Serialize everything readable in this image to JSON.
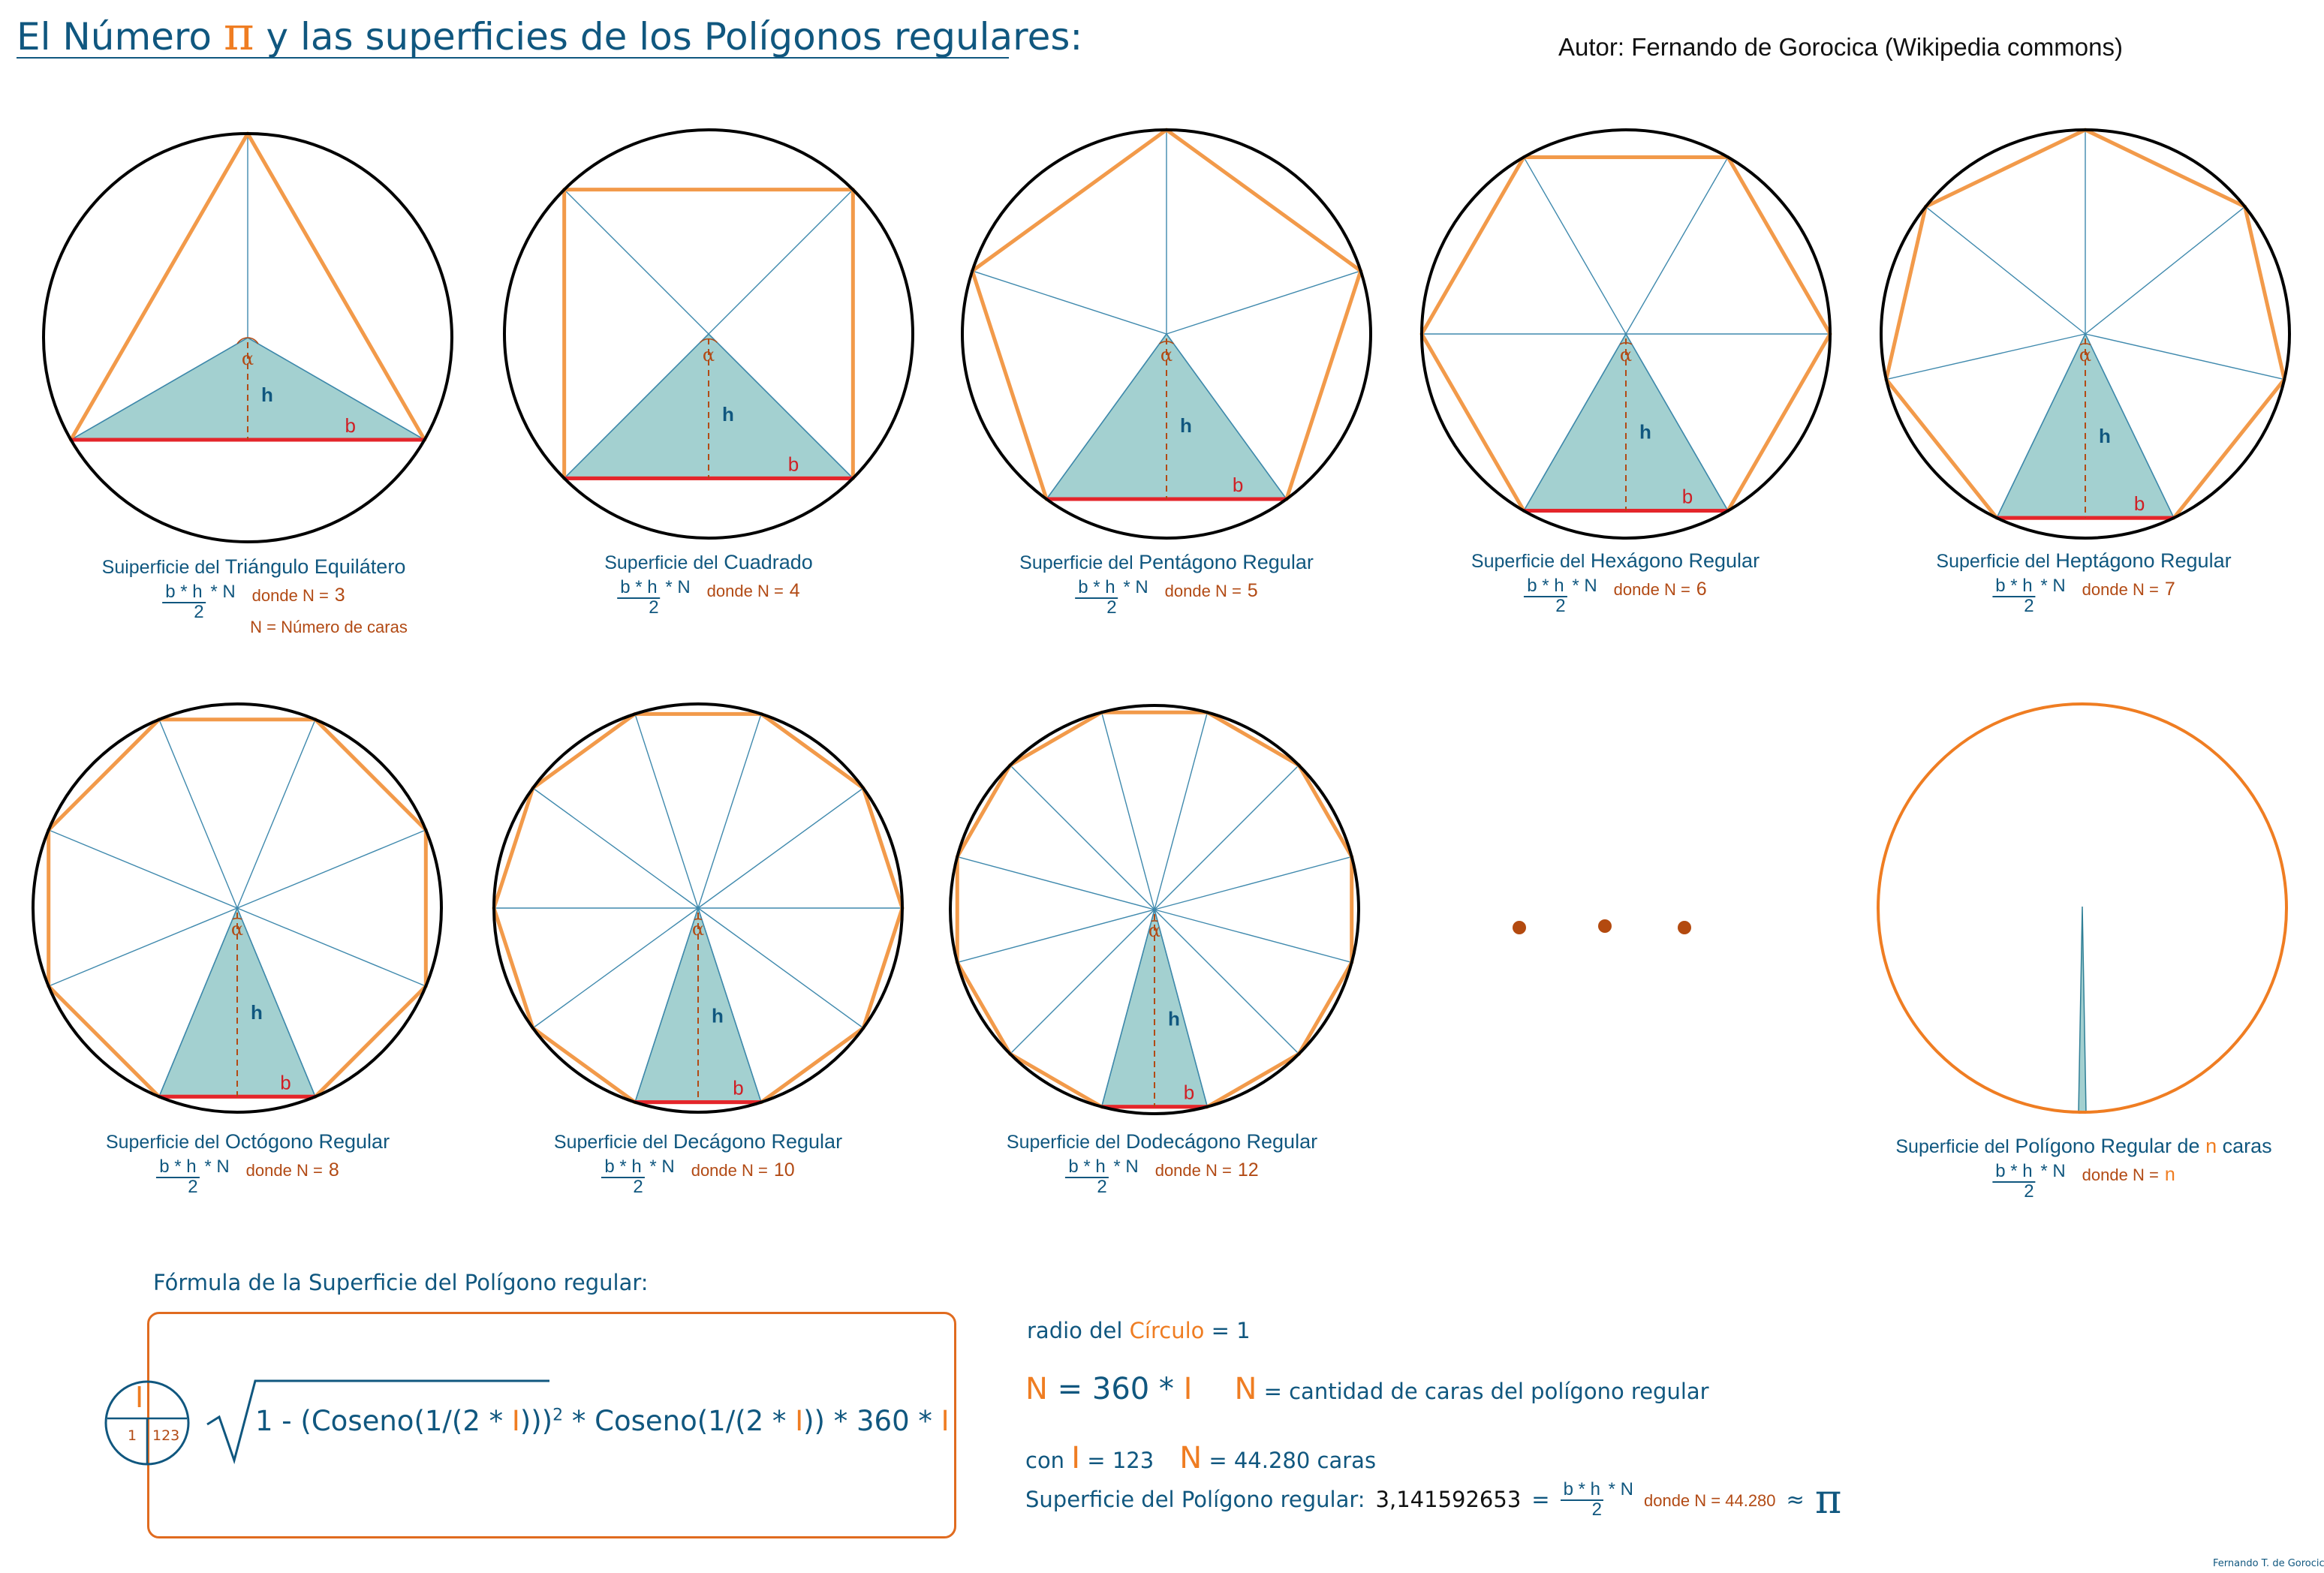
{
  "title": {
    "before": "El Número ",
    "symbol": "π",
    "after": " y las superficies de los Polígonos regulares:"
  },
  "author": "Autor: Fernando de Gorocica (Wikipedia commons)",
  "labels": {
    "alpha": "α",
    "h": "h",
    "b": "b"
  },
  "colors": {
    "polygon_stroke": "#f29a4a",
    "triangle_fill": "#a3d0d0",
    "triangle_stroke": "#2f7f96",
    "spoke": "#3f89ad",
    "base": "#e4252b",
    "height_dash": "#b24a14",
    "circle": "#000000",
    "limit_circle": "#ef7d22",
    "dots": "#b34a0f",
    "text_blue": "#10577f",
    "text_orange": "#ef7d22"
  },
  "formula_area": {
    "numerator": "b * h",
    "multiplier": "* N",
    "denominator": "2",
    "donde": "donde N ="
  },
  "polygons": [
    {
      "sides": 3,
      "prefix": "Suiperficie del",
      "name": "Triángulo Equilátero",
      "n_label": "3",
      "note": "N = Número de caras"
    },
    {
      "sides": 4,
      "prefix": "Superficie del",
      "name": "Cuadrado",
      "n_label": "4"
    },
    {
      "sides": 5,
      "prefix": "Superficie del",
      "name": "Pentágono Regular",
      "n_label": "5"
    },
    {
      "sides": 6,
      "prefix": "Superficie del",
      "name": "Hexágono Regular",
      "n_label": "6"
    },
    {
      "sides": 7,
      "prefix": "Superficie del",
      "name": "Heptágono Regular",
      "n_label": "7"
    },
    {
      "sides": 8,
      "prefix": "Superficie del",
      "name": "Octógono Regular",
      "n_label": "8"
    },
    {
      "sides": 10,
      "prefix": "Superficie del",
      "name": "Decágono Regular",
      "n_label": "10"
    },
    {
      "sides": 12,
      "prefix": "Superficie del",
      "name": "Dodecágono Regular",
      "n_label": "12"
    }
  ],
  "limit": {
    "prefix": "Superficie del",
    "name_before": "Polígono Regular de ",
    "name_var": "n",
    "name_after": " caras",
    "n_label": "n"
  },
  "general_formula": {
    "heading": "Fórmula de la Superficie del Polígono regular:",
    "badge_top": "I",
    "badge_left": "1",
    "badge_right": "123",
    "expr_1": "1 - (Coseno(1/(2 * ",
    "expr_var_1": "I",
    "expr_2": ")))",
    "expr_exp": "2",
    "expr_3": "  *  Coseno(1/(2 * ",
    "expr_var_2": "I",
    "expr_4": ")) * 360 * ",
    "expr_var_3": "I"
  },
  "info": {
    "radius_label": "radio del ",
    "radius_word": "Círculo",
    "radius_value": " = 1",
    "n_symbol": "N",
    "n_eq": " = 360 * ",
    "n_var": "I",
    "n_def_symbol": "N",
    "n_def": " = cantidad de caras del polígono regular",
    "con": "con ",
    "con_var": "I",
    "con_value": " = 123",
    "n_count_symbol": "N",
    "n_count": " = 44.280 caras",
    "result_label": "Superficie del Polígono regular:",
    "result_value": "3,141592653",
    "eq": "=",
    "donde": "donde N = 44.280",
    "approx": "≈",
    "pi": "π"
  },
  "footer": "Fernando T. de Gorocica"
}
